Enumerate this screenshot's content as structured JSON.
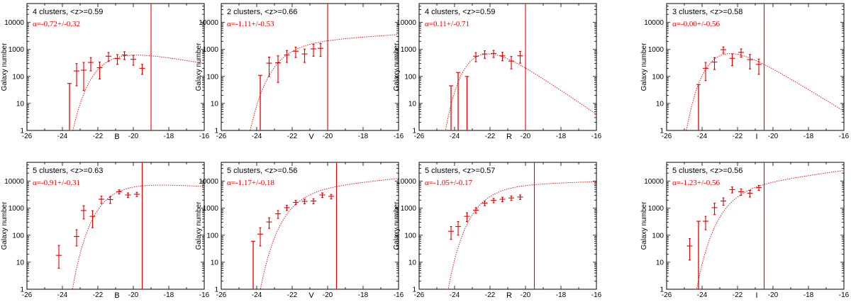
{
  "figure": {
    "ylabel": "Galaxy number",
    "xlim": [
      -26,
      -16
    ],
    "ylim": [
      1,
      50000
    ],
    "xticks": [
      -26,
      -24,
      -22,
      -20,
      -18,
      -16
    ],
    "yticks": [
      1,
      10,
      100,
      1000,
      10000
    ],
    "ytick_labels": [
      "1",
      "10",
      "100",
      "1000",
      "10000"
    ]
  },
  "chart_data": [
    {
      "type": "scatter",
      "band": "B",
      "clusters_text": "4 clusters, <z>=0.59",
      "alpha_text": "α=-0.72+/-0.32",
      "mstar": -21.2,
      "norm": 430,
      "alpha": -0.72,
      "cutoff": -19.0,
      "points": [
        {
          "x": -23.6,
          "y": 55,
          "lo": 1
        },
        {
          "x": -23.2,
          "y": 160,
          "lo": 45,
          "hi": 300
        },
        {
          "x": -22.8,
          "y": 170,
          "lo": 30,
          "hi": 330
        },
        {
          "x": -22.4,
          "y": 330,
          "lo": 160,
          "hi": 500
        },
        {
          "x": -21.9,
          "y": 210,
          "lo": 80,
          "hi": 340
        },
        {
          "x": -21.4,
          "y": 560,
          "lo": 360,
          "hi": 770
        },
        {
          "x": -20.9,
          "y": 460,
          "lo": 280,
          "hi": 640
        },
        {
          "x": -20.5,
          "y": 620,
          "lo": 420,
          "hi": 820
        },
        {
          "x": -20.0,
          "y": 430,
          "lo": 260,
          "hi": 600
        },
        {
          "x": -19.5,
          "y": 200,
          "lo": 120,
          "hi": 280
        }
      ]
    },
    {
      "type": "scatter",
      "band": "V",
      "clusters_text": "2 clusters, <z>=0.66",
      "alpha_text": "α=-1.11+/-0.53",
      "mstar": -22.2,
      "norm": 700,
      "alpha": -1.11,
      "cutoff": -20.0,
      "points": [
        {
          "x": -23.8,
          "y": 110,
          "lo": 1
        },
        {
          "x": -23.3,
          "y": 310,
          "lo": 100,
          "hi": 520
        },
        {
          "x": -22.8,
          "y": 320,
          "lo": 60,
          "hi": 580
        },
        {
          "x": -22.3,
          "y": 620,
          "lo": 330,
          "hi": 910
        },
        {
          "x": -21.8,
          "y": 860,
          "lo": 500,
          "hi": 1220
        },
        {
          "x": -21.3,
          "y": 680,
          "lo": 330,
          "hi": 1030
        },
        {
          "x": -20.8,
          "y": 1050,
          "lo": 560,
          "hi": 1540
        },
        {
          "x": -20.4,
          "y": 1100,
          "lo": 550,
          "hi": 1650
        }
      ]
    },
    {
      "type": "scatter",
      "band": "R",
      "clusters_text": "4 clusters, <z>=0.59",
      "alpha_text": "α=0.11+/-0.71",
      "mstar": -22.0,
      "norm": 680,
      "alpha": 0.11,
      "cutoff": -20.0,
      "points": [
        {
          "x": -24.2,
          "y": 45,
          "lo": 1
        },
        {
          "x": -23.8,
          "y": 140,
          "lo": 1
        },
        {
          "x": -23.3,
          "y": 100,
          "lo": 1
        },
        {
          "x": -22.8,
          "y": 560,
          "lo": 350,
          "hi": 760
        },
        {
          "x": -22.3,
          "y": 680,
          "lo": 470,
          "hi": 890
        },
        {
          "x": -21.8,
          "y": 710,
          "lo": 500,
          "hi": 920
        },
        {
          "x": -21.3,
          "y": 580,
          "lo": 380,
          "hi": 780
        },
        {
          "x": -20.8,
          "y": 370,
          "lo": 190,
          "hi": 550
        },
        {
          "x": -20.3,
          "y": 580,
          "lo": 310,
          "hi": 850
        }
      ]
    },
    {
      "type": "scatter",
      "band": "I",
      "clusters_text": "3 clusters, <z>=0.58",
      "alpha_text": "α=-0.00+/-0.56",
      "mstar": -22.4,
      "norm": 700,
      "alpha": 0.0,
      "cutoff": -20.5,
      "points": [
        {
          "x": -24.2,
          "y": 50,
          "lo": 1
        },
        {
          "x": -23.8,
          "y": 200,
          "lo": 70,
          "hi": 330
        },
        {
          "x": -23.3,
          "y": 340,
          "lo": 180,
          "hi": 500
        },
        {
          "x": -22.8,
          "y": 980,
          "lo": 720,
          "hi": 1240
        },
        {
          "x": -22.3,
          "y": 470,
          "lo": 250,
          "hi": 690
        },
        {
          "x": -21.8,
          "y": 780,
          "lo": 520,
          "hi": 1040
        },
        {
          "x": -21.3,
          "y": 420,
          "lo": 190,
          "hi": 650
        },
        {
          "x": -20.8,
          "y": 280,
          "lo": 120,
          "hi": 440
        }
      ]
    },
    {
      "type": "scatter",
      "band": "B",
      "clusters_text": "5 clusters, <z>=0.63",
      "alpha_text": "α=-0.91+/-0.31",
      "mstar": -21.0,
      "norm": 3600,
      "alpha": -0.91,
      "cutoff": -19.5,
      "points": [
        {
          "x": -24.2,
          "y": 18,
          "lo": 6,
          "hi": 42
        },
        {
          "x": -23.2,
          "y": 90,
          "lo": 40,
          "hi": 160
        },
        {
          "x": -22.8,
          "y": 820,
          "lo": 400,
          "hi": 1240
        },
        {
          "x": -22.3,
          "y": 500,
          "lo": 190,
          "hi": 810
        },
        {
          "x": -21.8,
          "y": 2150,
          "lo": 1500,
          "hi": 2800
        },
        {
          "x": -21.3,
          "y": 2100,
          "lo": 1500,
          "hi": 2700
        },
        {
          "x": -20.8,
          "y": 4100,
          "lo": 3400,
          "hi": 4800
        },
        {
          "x": -20.3,
          "y": 3100,
          "lo": 2500,
          "hi": 3700
        },
        {
          "x": -19.8,
          "y": 3300,
          "lo": 2700,
          "hi": 3900
        }
      ]
    },
    {
      "type": "scatter",
      "band": "V",
      "clusters_text": "5 clusters, <z>=0.56",
      "alpha_text": "α=-1.17+/-0.18",
      "mstar": -21.5,
      "norm": 2000,
      "alpha": -1.17,
      "cutoff": -19.5,
      "points": [
        {
          "x": -24.2,
          "y": 60,
          "lo": 1
        },
        {
          "x": -23.8,
          "y": 110,
          "lo": 40,
          "hi": 190
        },
        {
          "x": -23.3,
          "y": 310,
          "lo": 180,
          "hi": 440
        },
        {
          "x": -22.8,
          "y": 620,
          "lo": 420,
          "hi": 820
        },
        {
          "x": -22.3,
          "y": 1050,
          "lo": 820,
          "hi": 1280
        },
        {
          "x": -21.8,
          "y": 1650,
          "lo": 1350,
          "hi": 1950
        },
        {
          "x": -21.3,
          "y": 1800,
          "lo": 1450,
          "hi": 2150
        },
        {
          "x": -20.8,
          "y": 1850,
          "lo": 1450,
          "hi": 2250
        },
        {
          "x": -20.3,
          "y": 3100,
          "lo": 2500,
          "hi": 3700
        },
        {
          "x": -19.8,
          "y": 2750,
          "lo": 2250,
          "hi": 3250
        }
      ]
    },
    {
      "type": "scatter",
      "band": "R",
      "clusters_text": "5 clusters, <z>=0.57",
      "alpha_text": "α=-1.05+/-0.17",
      "mstar": -22.0,
      "norm": 2700,
      "alpha": -1.05,
      "cutoff": -19.5,
      "points": [
        {
          "x": -24.2,
          "y": 140,
          "lo": 70,
          "hi": 210
        },
        {
          "x": -23.8,
          "y": 210,
          "lo": 100,
          "hi": 320
        },
        {
          "x": -23.3,
          "y": 500,
          "lo": 320,
          "hi": 680
        },
        {
          "x": -22.8,
          "y": 850,
          "lo": 650,
          "hi": 1050
        },
        {
          "x": -22.3,
          "y": 1550,
          "lo": 1250,
          "hi": 1850
        },
        {
          "x": -21.8,
          "y": 1950,
          "lo": 1600,
          "hi": 2300
        },
        {
          "x": -21.3,
          "y": 2150,
          "lo": 1750,
          "hi": 2550
        },
        {
          "x": -20.8,
          "y": 2400,
          "lo": 1950,
          "hi": 2850
        },
        {
          "x": -20.3,
          "y": 2600,
          "lo": 2100,
          "hi": 3100
        }
      ]
    },
    {
      "type": "scatter",
      "band": "I",
      "clusters_text": "5 clusters, <z>=0.56",
      "alpha_text": "α=-1.23+/-0.56",
      "mstar": -22.0,
      "norm": 2600,
      "alpha": -1.23,
      "cutoff": -20.5,
      "points": [
        {
          "x": -24.7,
          "y": 40,
          "lo": 12,
          "hi": 75
        },
        {
          "x": -24.2,
          "y": 330,
          "lo": 1
        },
        {
          "x": -23.8,
          "y": 330,
          "lo": 160,
          "hi": 500
        },
        {
          "x": -23.3,
          "y": 1050,
          "lo": 580,
          "hi": 1520
        },
        {
          "x": -22.8,
          "y": 1850,
          "lo": 1280,
          "hi": 2420
        },
        {
          "x": -22.3,
          "y": 4900,
          "lo": 3700,
          "hi": 6100
        },
        {
          "x": -21.8,
          "y": 4100,
          "lo": 3000,
          "hi": 5200
        },
        {
          "x": -21.3,
          "y": 3600,
          "lo": 2600,
          "hi": 4600
        },
        {
          "x": -20.8,
          "y": 5800,
          "lo": 4600,
          "hi": 7000
        }
      ]
    }
  ]
}
